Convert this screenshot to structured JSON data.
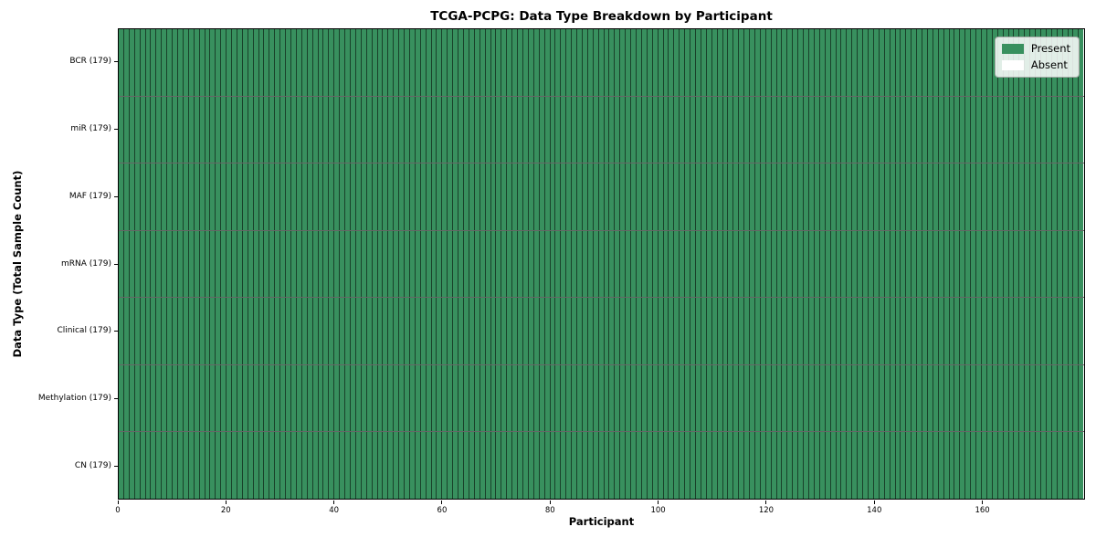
{
  "figure": {
    "title": "TCGA-PCPG: Data Type Breakdown by Participant",
    "xlabel": "Participant",
    "ylabel": "Data Type (Total Sample Count)"
  },
  "legend": {
    "entries": [
      {
        "name": "present",
        "label": "Present",
        "color": "#38905e"
      },
      {
        "name": "absent",
        "label": "Absent",
        "color": "#ffffff"
      }
    ]
  },
  "chart_data": {
    "type": "heatmap",
    "title": "TCGA-PCPG: Data Type Breakdown by Participant",
    "xlabel": "Participant",
    "ylabel": "Data Type (Total Sample Count)",
    "n_participants": 179,
    "x_axis": {
      "min": 0,
      "max": 179,
      "ticks": [
        0,
        20,
        40,
        60,
        80,
        100,
        120,
        140,
        160
      ]
    },
    "rows": [
      {
        "label": "BCR (179)",
        "data_type": "BCR",
        "total_samples": 179,
        "present_count": 179,
        "absent_count": 0
      },
      {
        "label": "miR (179)",
        "data_type": "miR",
        "total_samples": 179,
        "present_count": 179,
        "absent_count": 0
      },
      {
        "label": "MAF (179)",
        "data_type": "MAF",
        "total_samples": 179,
        "present_count": 179,
        "absent_count": 0
      },
      {
        "label": "mRNA (179)",
        "data_type": "mRNA",
        "total_samples": 179,
        "present_count": 179,
        "absent_count": 0
      },
      {
        "label": "Clinical (179)",
        "data_type": "Clinical",
        "total_samples": 179,
        "present_count": 179,
        "absent_count": 0
      },
      {
        "label": "Methylation (179)",
        "data_type": "Methylation",
        "total_samples": 179,
        "present_count": 179,
        "absent_count": 0
      },
      {
        "label": "CN (179)",
        "data_type": "CN",
        "total_samples": 179,
        "present_count": 179,
        "absent_count": 0
      }
    ],
    "colors": {
      "present": "#38905e",
      "absent": "#ffffff",
      "cell_edge": "rgba(0,0,0,0.55)"
    },
    "legend_position": "upper right",
    "grid": "cell-borders"
  }
}
